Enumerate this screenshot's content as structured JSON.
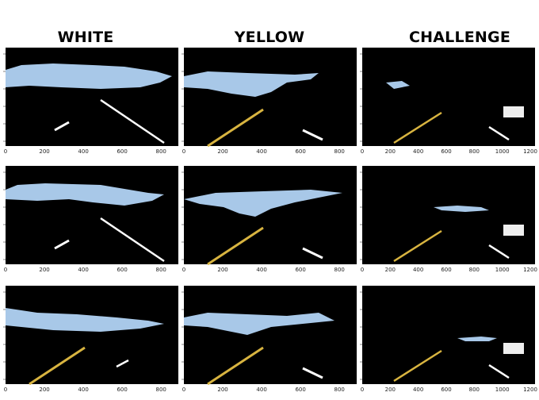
{
  "columns": [
    {
      "title": "WHITE",
      "x_ticks": [
        "0",
        "200",
        "400",
        "600",
        "800"
      ]
    },
    {
      "title": "YELLOW",
      "x_ticks": [
        "0",
        "200",
        "400",
        "600",
        "800"
      ]
    },
    {
      "title": "CHALLENGE",
      "x_ticks": [
        "0",
        "200",
        "400",
        "600",
        "800",
        "1000",
        "1200"
      ]
    }
  ],
  "colors": {
    "sky": "#a8c8e8",
    "white_lane": "#ffffff",
    "yellow_lane": "#d8b440",
    "background": "#000000"
  }
}
